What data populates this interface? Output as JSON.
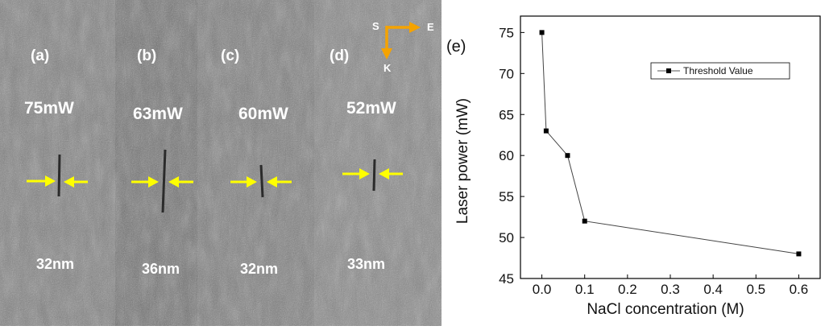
{
  "sem_images": {
    "panels": [
      {
        "label": "(a)",
        "power": "75mW",
        "width": "32nm"
      },
      {
        "label": "(b)",
        "power": "63mW",
        "width": "36nm"
      },
      {
        "label": "(c)",
        "power": "60mW",
        "width": "32nm"
      },
      {
        "label": "(d)",
        "power": "52mW",
        "width": "33nm"
      }
    ],
    "orientation": {
      "s": "S",
      "e": "E",
      "k": "K"
    },
    "colors": {
      "arrow": "#ffff00",
      "orientation": "#f5a300",
      "text": "#ffffff"
    }
  },
  "chart_data": {
    "type": "line",
    "panel_label": "(e)",
    "x": [
      0.0,
      0.01,
      0.06,
      0.1,
      0.6
    ],
    "series": [
      {
        "name": "Threshold Value",
        "values": [
          75,
          63,
          60,
          52,
          48
        ],
        "color": "#000000"
      }
    ],
    "xlabel": "NaCl concentration (M)",
    "ylabel": "Laser power (mW)",
    "xlim": [
      -0.05,
      0.65
    ],
    "ylim": [
      45,
      77
    ],
    "xticks": [
      0.0,
      0.1,
      0.2,
      0.3,
      0.4,
      0.5,
      0.6
    ],
    "xtick_labels": [
      "0.0",
      "0.1",
      "0.2",
      "0.3",
      "0.4",
      "0.5",
      "0.6"
    ],
    "yticks": [
      45,
      50,
      55,
      60,
      65,
      70,
      75
    ],
    "ytick_labels": [
      "45",
      "50",
      "55",
      "60",
      "65",
      "70",
      "75"
    ],
    "legend_position": "top-right",
    "grid": false
  }
}
